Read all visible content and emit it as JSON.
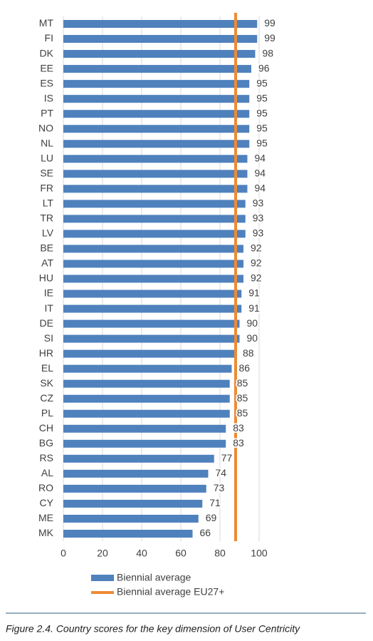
{
  "chart_data": {
    "type": "bar",
    "orientation": "horizontal",
    "categories": [
      "MT",
      "FI",
      "DK",
      "EE",
      "ES",
      "IS",
      "PT",
      "NO",
      "NL",
      "LU",
      "SE",
      "FR",
      "LT",
      "TR",
      "LV",
      "BE",
      "AT",
      "HU",
      "IE",
      "IT",
      "DE",
      "SI",
      "HR",
      "EL",
      "SK",
      "CZ",
      "PL",
      "CH",
      "BG",
      "RS",
      "AL",
      "RO",
      "CY",
      "ME",
      "MK"
    ],
    "series": [
      {
        "name": "Biennial average",
        "color": "#4f81bd",
        "values": [
          99,
          99,
          98,
          96,
          95,
          95,
          95,
          95,
          95,
          94,
          94,
          94,
          93,
          93,
          93,
          92,
          92,
          92,
          91,
          91,
          90,
          90,
          88,
          86,
          85,
          85,
          85,
          83,
          83,
          77,
          74,
          73,
          71,
          69,
          66
        ]
      }
    ],
    "reference_line": {
      "name": "Biennial average EU27+",
      "color": "#ed8b36",
      "value": 88
    },
    "xlim": [
      0,
      100
    ],
    "xticks": [
      0,
      20,
      40,
      60,
      80,
      100
    ],
    "grid": true,
    "legend": "bottom"
  },
  "caption": "Figure 2.4.  Country scores for the key dimension of User Centricity"
}
